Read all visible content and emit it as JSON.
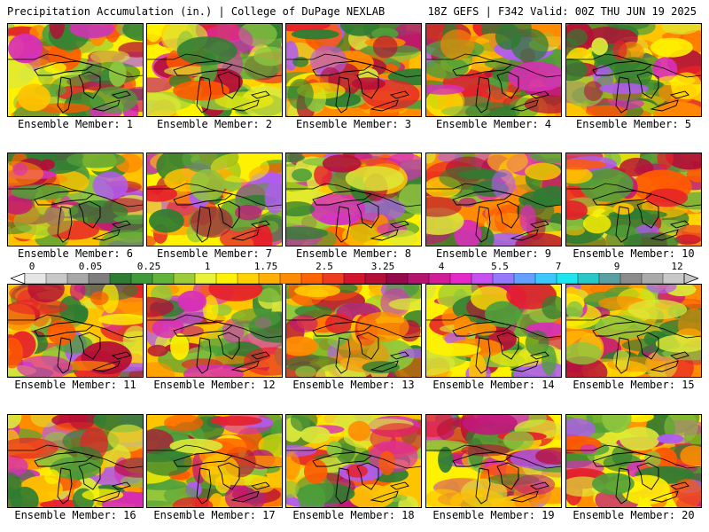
{
  "header": {
    "title": "Precipitation Accumulation (in.) | College of DuPage NEXLAB",
    "run_info": "18Z GEFS | F342 Valid: 00Z THU JUN 19 2025"
  },
  "members": [
    {
      "label": "Ensemble Member: 1"
    },
    {
      "label": "Ensemble Member: 2"
    },
    {
      "label": "Ensemble Member: 3"
    },
    {
      "label": "Ensemble Member: 4"
    },
    {
      "label": "Ensemble Member: 5"
    },
    {
      "label": "Ensemble Member: 6"
    },
    {
      "label": "Ensemble Member: 7"
    },
    {
      "label": "Ensemble Member: 8"
    },
    {
      "label": "Ensemble Member: 9"
    },
    {
      "label": "Ensemble Member: 10"
    },
    {
      "label": "Ensemble Member: 11"
    },
    {
      "label": "Ensemble Member: 12"
    },
    {
      "label": "Ensemble Member: 13"
    },
    {
      "label": "Ensemble Member: 14"
    },
    {
      "label": "Ensemble Member: 15"
    },
    {
      "label": "Ensemble Member: 16"
    },
    {
      "label": "Ensemble Member: 17"
    },
    {
      "label": "Ensemble Member: 18"
    },
    {
      "label": "Ensemble Member: 19"
    },
    {
      "label": "Ensemble Member: 20"
    }
  ],
  "colorbar": {
    "tick_labels": [
      "0",
      "0.05",
      "0.25",
      "1",
      "1.75",
      "2.5",
      "3.25",
      "4",
      "5.5",
      "7",
      "9",
      "12"
    ],
    "colors": [
      "#e6e6e6",
      "#c8c8c8",
      "#a8a8a8",
      "#7e7e7e",
      "#2e7d32",
      "#3f9a3a",
      "#62b43a",
      "#9ccc3a",
      "#e8f23a",
      "#fff200",
      "#ffd200",
      "#ffb000",
      "#ff8c00",
      "#ff6400",
      "#f03c1e",
      "#d2142d",
      "#b40f37",
      "#960a4b",
      "#b4146e",
      "#d21e96",
      "#e628c8",
      "#c850f0",
      "#9678ff",
      "#64a0ff",
      "#3cc8ff",
      "#1ee6f0",
      "#28c8c8",
      "#5aa0a0",
      "#8c8c8c",
      "#aaaaaa",
      "#c8c8c8"
    ]
  }
}
